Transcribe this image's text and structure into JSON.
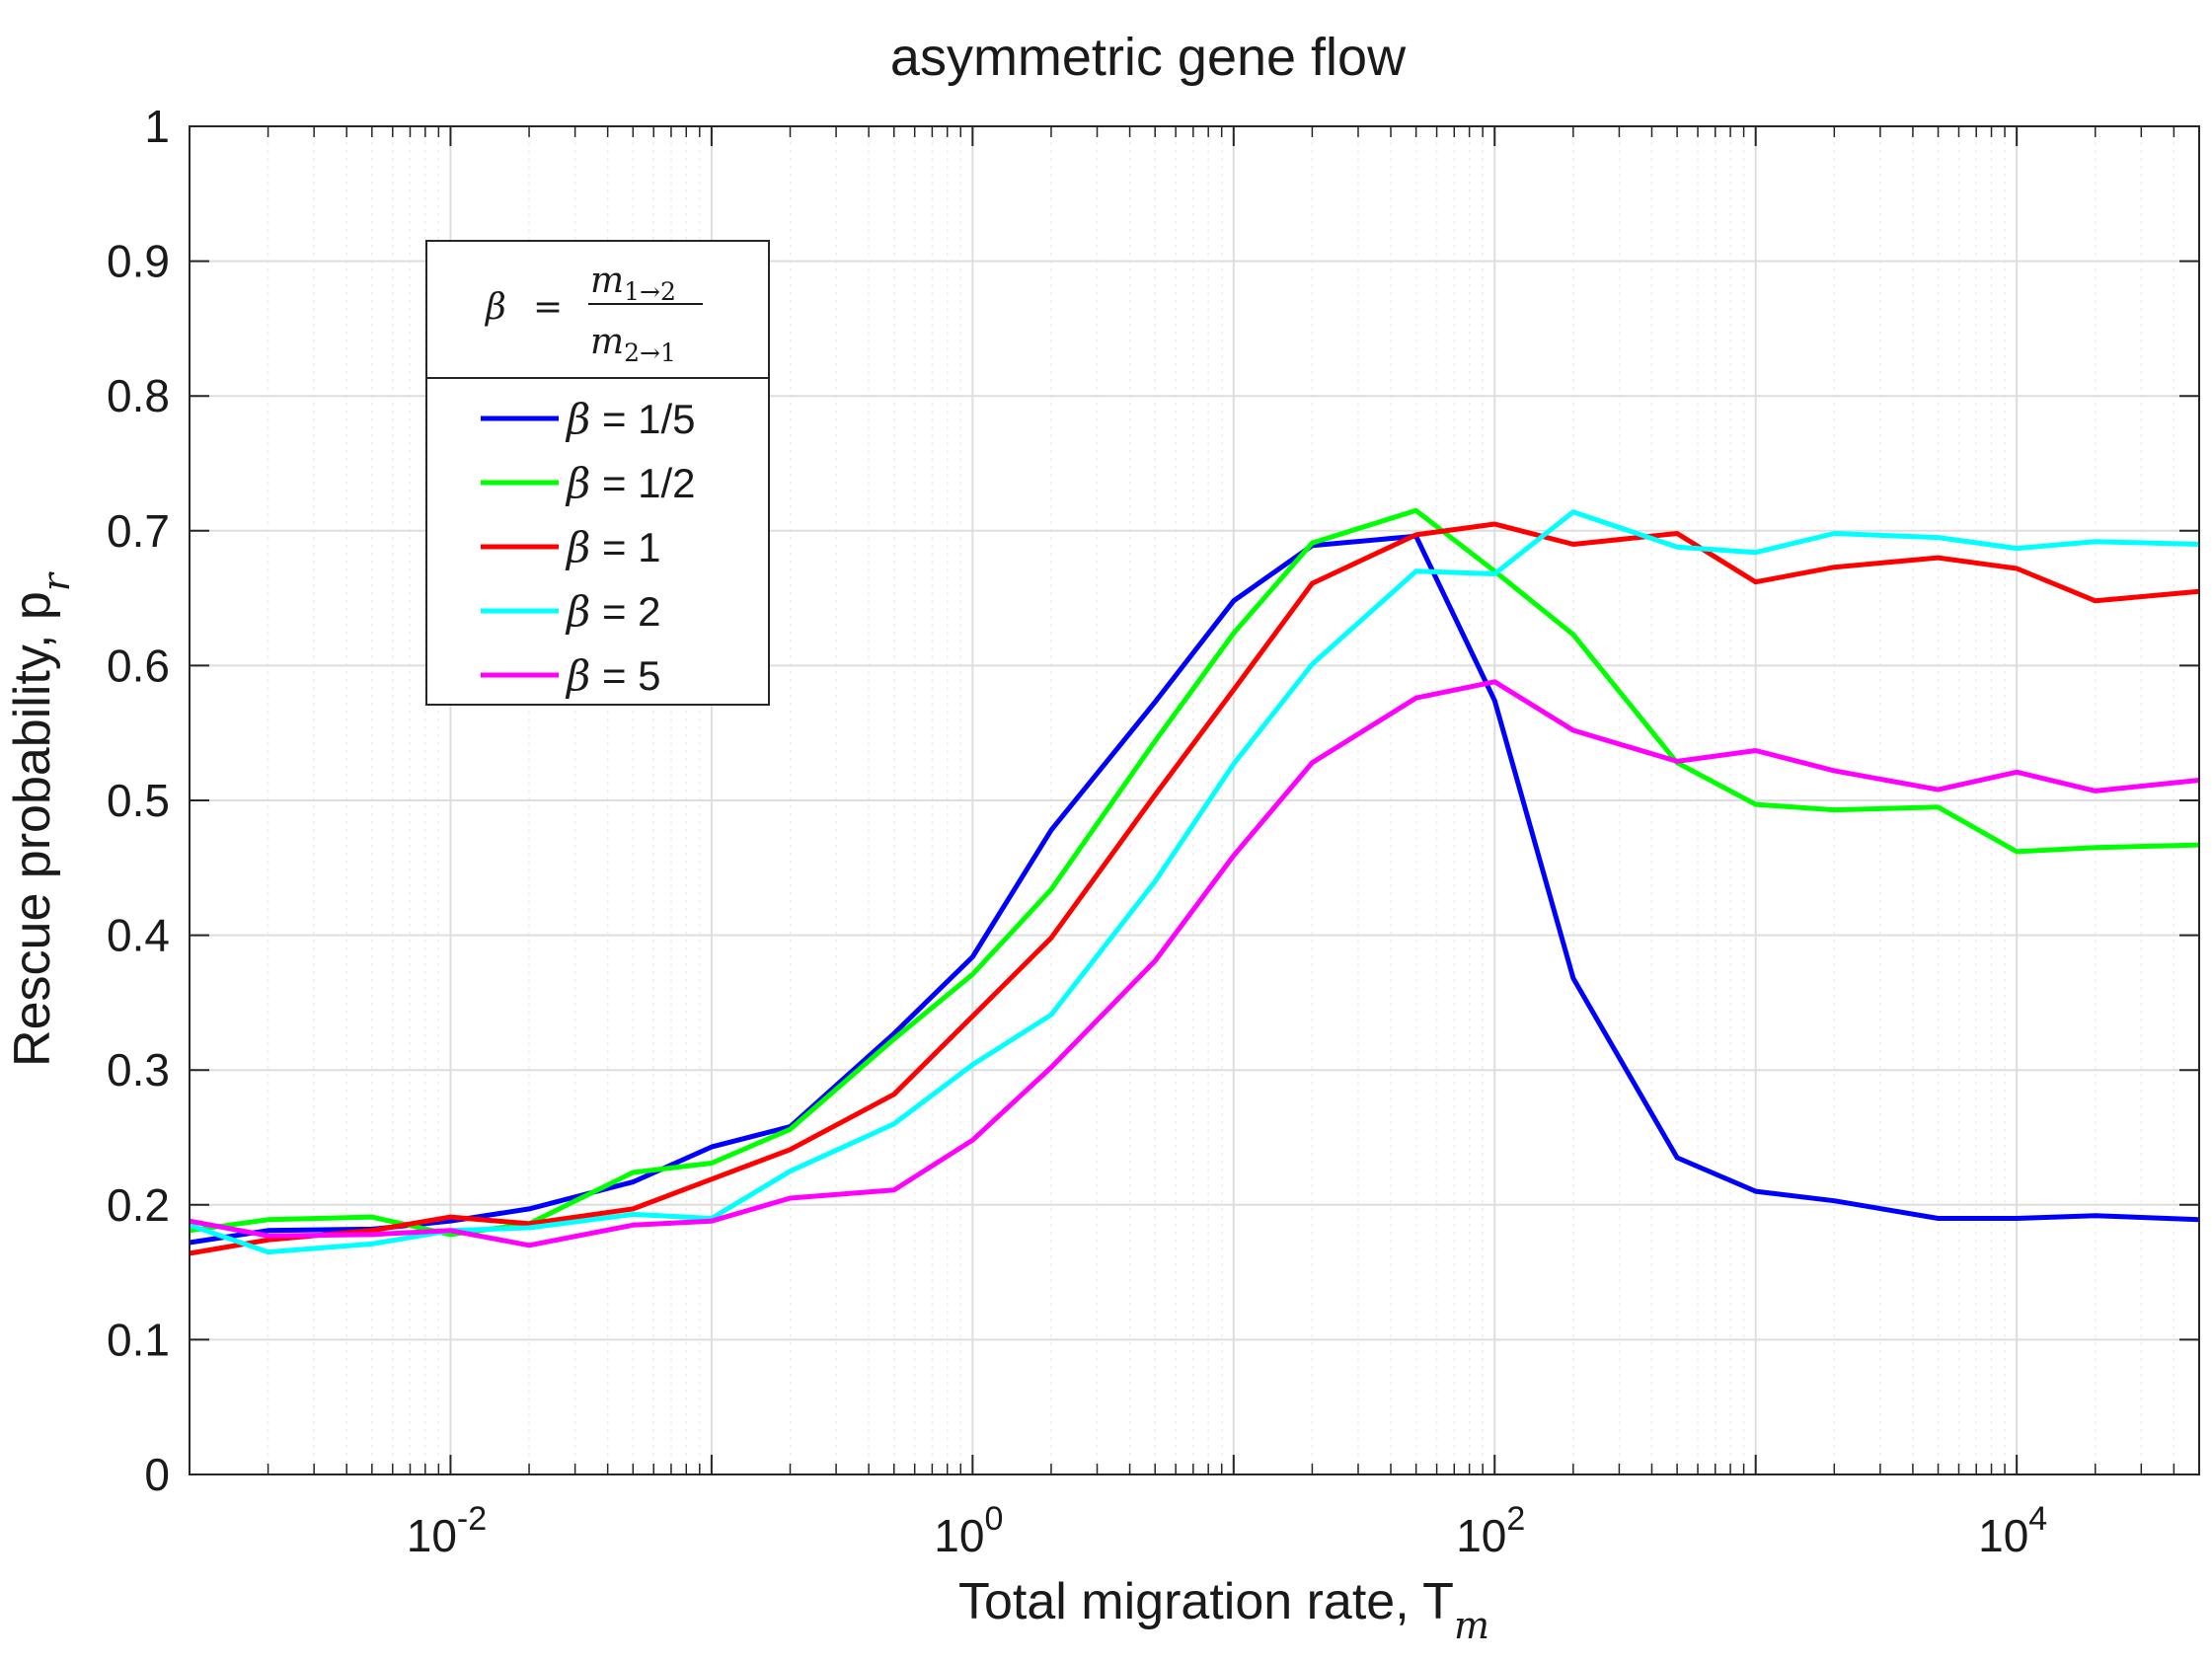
{
  "chart_data": {
    "type": "line",
    "title": "asymmetric gene flow",
    "xlabel": {
      "base": "Total migration rate, T",
      "sub": "m"
    },
    "ylabel": {
      "base": "Rescue probability, p",
      "sub": "r"
    },
    "xscale": "log",
    "xlim": [
      0.001,
      50000
    ],
    "ylim": [
      0,
      1
    ],
    "xtick_labels": [
      {
        "value": 0.01,
        "base": "10",
        "exp": "-2"
      },
      {
        "value": 1,
        "base": "10",
        "exp": "0"
      },
      {
        "value": 100,
        "base": "10",
        "exp": "2"
      },
      {
        "value": 10000,
        "base": "10",
        "exp": "4"
      }
    ],
    "yticks": [
      0,
      0.1,
      0.2,
      0.3,
      0.4,
      0.5,
      0.6,
      0.7,
      0.8,
      0.9,
      1
    ],
    "ytick_labels": [
      "0",
      "0.1",
      "0.2",
      "0.3",
      "0.4",
      "0.5",
      "0.6",
      "0.7",
      "0.8",
      "0.9",
      "1"
    ],
    "grid": true,
    "legend": {
      "placement": "top-left",
      "header": {
        "symbol": "β",
        "eq": "=",
        "num_base": "m",
        "num_sub": "1→2",
        "den_base": "m",
        "den_sub": "2→1"
      }
    },
    "x": [
      0.001,
      0.002,
      0.005,
      0.01,
      0.02,
      0.05,
      0.1,
      0.2,
      0.5,
      1,
      2,
      5,
      10,
      20,
      50,
      100,
      200,
      500,
      1000,
      2000,
      5000,
      10000,
      20000,
      50000
    ],
    "series": [
      {
        "name": "β = 1/5",
        "symbol": "β",
        "rest": " = 1/5",
        "color": "#0000ff",
        "values": [
          0.172,
          0.181,
          0.182,
          0.188,
          0.197,
          0.217,
          0.243,
          0.258,
          0.327,
          0.384,
          0.478,
          0.573,
          0.648,
          0.689,
          0.696,
          0.574,
          0.368,
          0.235,
          0.21,
          0.203,
          0.19,
          0.19,
          0.192,
          0.189
        ]
      },
      {
        "name": "β = 1/2",
        "symbol": "β",
        "rest": " = 1/2",
        "color": "#00ff00",
        "values": [
          0.181,
          0.189,
          0.191,
          0.178,
          0.186,
          0.224,
          0.231,
          0.256,
          0.323,
          0.371,
          0.434,
          0.544,
          0.624,
          0.691,
          0.715,
          0.67,
          0.623,
          0.528,
          0.497,
          0.493,
          0.495,
          0.462,
          0.465,
          0.467
        ]
      },
      {
        "name": "β = 1",
        "symbol": "β",
        "rest": " = 1",
        "color": "#ff0000",
        "values": [
          0.164,
          0.174,
          0.181,
          0.191,
          0.186,
          0.197,
          0.219,
          0.241,
          0.282,
          0.34,
          0.398,
          0.504,
          0.582,
          0.661,
          0.697,
          0.705,
          0.69,
          0.698,
          0.662,
          0.673,
          0.68,
          0.672,
          0.648,
          0.655
        ]
      },
      {
        "name": "β = 2",
        "symbol": "β",
        "rest": " = 2",
        "color": "#00ffff",
        "values": [
          0.185,
          0.165,
          0.171,
          0.181,
          0.183,
          0.193,
          0.19,
          0.225,
          0.26,
          0.304,
          0.341,
          0.44,
          0.527,
          0.601,
          0.67,
          0.668,
          0.714,
          0.688,
          0.684,
          0.698,
          0.695,
          0.687,
          0.692,
          0.69
        ]
      },
      {
        "name": "β = 5",
        "symbol": "β",
        "rest": " = 5",
        "color": "#ff00ff",
        "values": [
          0.188,
          0.177,
          0.178,
          0.181,
          0.17,
          0.185,
          0.188,
          0.205,
          0.211,
          0.248,
          0.302,
          0.381,
          0.459,
          0.528,
          0.576,
          0.588,
          0.552,
          0.529,
          0.537,
          0.522,
          0.508,
          0.521,
          0.507,
          0.515
        ]
      }
    ]
  }
}
